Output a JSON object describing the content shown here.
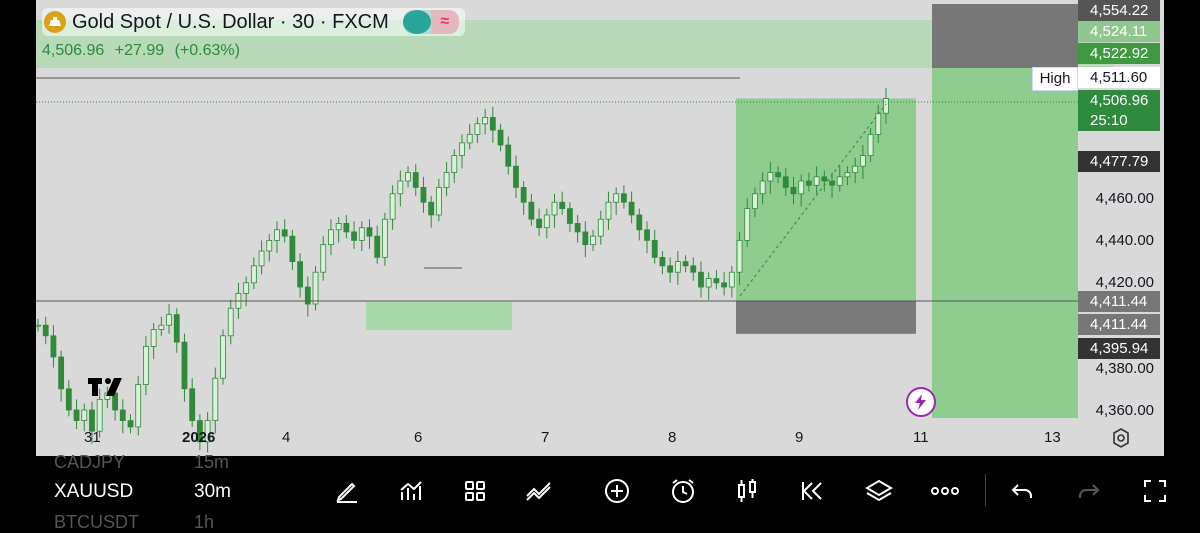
{
  "header": {
    "title": "Gold Spot / U.S. Dollar · 30 · FXCM",
    "last_price": "4,506.96",
    "change": "+27.99",
    "change_pct": "(+0.63%)"
  },
  "price_axis": {
    "ticks": [
      "4,460.00",
      "4,440.00",
      "4,420.00",
      "4,380.00",
      "4,360.00"
    ],
    "tags": [
      {
        "label": "4,554.22",
        "color": "#555555"
      },
      {
        "label": "4,524.11",
        "color": "#8fc78f"
      },
      {
        "label": "4,522.92",
        "color": "#3f9a3f"
      },
      {
        "label": "4,511.60",
        "color": "#ffffff"
      },
      {
        "label": "4,506.96",
        "color": "#2e8b3d"
      },
      {
        "label": "25:10",
        "color": "#2e8b3d"
      },
      {
        "label": "4,477.79",
        "color": "#333333"
      },
      {
        "label": "4,411.44",
        "color": "#777777"
      },
      {
        "label": "4,411.44",
        "color": "#777777"
      },
      {
        "label": "4,395.94",
        "color": "#333333"
      }
    ],
    "high_label": "High"
  },
  "time_axis": {
    "labels": [
      "31",
      "2026",
      "4",
      "6",
      "7",
      "8",
      "9",
      "11",
      "13"
    ]
  },
  "bottom_bar": {
    "symbol": "XAUUSD",
    "timeframe": "30m",
    "ghost_symbol_top": "CADJPY",
    "ghost_tf_top": "15m",
    "ghost_symbol_bottom": "BTCUSDT",
    "ghost_tf_bottom": "1h",
    "tools": [
      "pen-icon",
      "chart-indicator-icon",
      "grid-icon",
      "drawing-tools-icon",
      "add-icon",
      "alarm-icon",
      "candles-icon",
      "replay-icon",
      "layers-icon",
      "more-icon",
      "undo-icon",
      "redo-icon",
      "fullscreen-icon"
    ]
  },
  "colors": {
    "candle": "#2f8a3a",
    "chart_bg": "#d9d9d9",
    "profit_zone": "#8fcd8f",
    "loss_zone": "#7a7a7a"
  },
  "chart_data": {
    "type": "candlestick",
    "symbol": "XAUUSD",
    "interval": "30",
    "ylim": [
      4350,
      4560
    ],
    "y_ticks": [
      4460,
      4440,
      4420,
      4380,
      4360
    ],
    "x_labels": [
      "31",
      "2026",
      "4",
      "6",
      "7",
      "8",
      "9",
      "11",
      "13"
    ],
    "grid": false,
    "series_approx_close": [
      4400,
      4395,
      4385,
      4370,
      4360,
      4355,
      4360,
      4350,
      4365,
      4368,
      4360,
      4355,
      4352,
      4372,
      4390,
      4398,
      4400,
      4405,
      4392,
      4370,
      4355,
      4345,
      4355,
      4375,
      4395,
      4408,
      4415,
      4420,
      4428,
      4435,
      4440,
      4445,
      4442,
      4430,
      4418,
      4410,
      4425,
      4438,
      4445,
      4448,
      4444,
      4440,
      4446,
      4442,
      4432,
      4450,
      4462,
      4468,
      4472,
      4465,
      4458,
      4452,
      4465,
      4472,
      4480,
      4486,
      4490,
      4495,
      4498,
      4492,
      4485,
      4475,
      4465,
      4458,
      4450,
      4446,
      4452,
      4458,
      4455,
      4448,
      4444,
      4438,
      4442,
      4450,
      4458,
      4462,
      4458,
      4452,
      4445,
      4440,
      4432,
      4428,
      4425,
      4430,
      4428,
      4425,
      4418,
      4422,
      4420,
      4418,
      4425,
      4440,
      4455,
      4462,
      4468,
      4472,
      4470,
      4465,
      4462,
      4468,
      4466,
      4470,
      4468,
      4466,
      4470,
      4472,
      4475,
      4480,
      4490,
      4500,
      4506.96
    ],
    "position_tool": {
      "entry": 4411.44,
      "target": 4506.96,
      "stop": 4395.94
    },
    "last_price": 4506.96,
    "high": 4511.6
  }
}
